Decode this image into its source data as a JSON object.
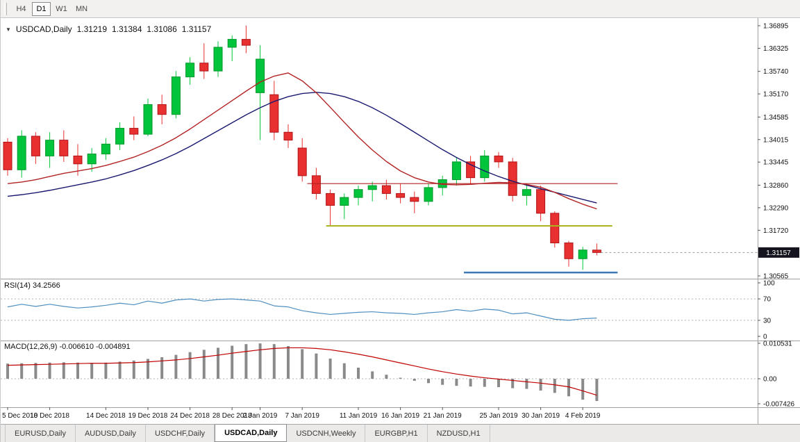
{
  "toolbar": {
    "buttons": [
      {
        "label": "H4",
        "active": false
      },
      {
        "label": "D1",
        "active": true
      },
      {
        "label": "W1",
        "active": false
      },
      {
        "label": "MN",
        "active": false
      }
    ]
  },
  "main_title": {
    "dropdown_icon": "▼",
    "symbol": "USDCAD,Daily",
    "o": "1.31219",
    "h": "1.31384",
    "l": "1.31086",
    "c": "1.31157"
  },
  "chart_data": {
    "type": "candlestick",
    "symbol": "USDCAD",
    "timeframe": "Daily",
    "ylim": [
      1.304,
      1.37
    ],
    "price_axis": {
      "ticks": [
        "1.36895",
        "1.36325",
        "1.35740",
        "1.35170",
        "1.34585",
        "1.34015",
        "1.33445",
        "1.32860",
        "1.32290",
        "1.31720",
        "1.30565"
      ],
      "current": "1.31157",
      "badge_bg": "#14141e",
      "badge_text": "#ffffff"
    },
    "candles": [
      [
        1.3395,
        1.3405,
        1.331,
        1.3325
      ],
      [
        1.3325,
        1.3425,
        1.3305,
        1.341
      ],
      [
        1.341,
        1.342,
        1.334,
        1.336
      ],
      [
        1.336,
        1.342,
        1.333,
        1.34
      ],
      [
        1.34,
        1.3425,
        1.3345,
        1.336
      ],
      [
        1.336,
        1.339,
        1.331,
        1.334
      ],
      [
        1.334,
        1.338,
        1.332,
        1.3365
      ],
      [
        1.3365,
        1.3405,
        1.335,
        1.339
      ],
      [
        1.339,
        1.3445,
        1.3375,
        1.343
      ],
      [
        1.343,
        1.346,
        1.34,
        1.3415
      ],
      [
        1.3415,
        1.3505,
        1.341,
        1.349
      ],
      [
        1.349,
        1.3515,
        1.344,
        1.3465
      ],
      [
        1.3465,
        1.3575,
        1.3455,
        1.356
      ],
      [
        1.356,
        1.361,
        1.354,
        1.3595
      ],
      [
        1.3595,
        1.3645,
        1.3555,
        1.3575
      ],
      [
        1.3575,
        1.365,
        1.356,
        1.3635
      ],
      [
        1.3635,
        1.3665,
        1.36,
        1.3655
      ],
      [
        1.3655,
        1.369,
        1.362,
        1.364
      ],
      [
        1.352,
        1.364,
        1.34,
        1.3605
      ],
      [
        1.3515,
        1.355,
        1.34,
        1.342
      ],
      [
        1.342,
        1.344,
        1.338,
        1.34
      ],
      [
        1.338,
        1.3405,
        1.3295,
        1.331
      ],
      [
        1.331,
        1.333,
        1.325,
        1.3265
      ],
      [
        1.3265,
        1.3275,
        1.3183,
        1.3235
      ],
      [
        1.3235,
        1.3265,
        1.32,
        1.3255
      ],
      [
        1.3255,
        1.3285,
        1.3235,
        1.3275
      ],
      [
        1.3275,
        1.3295,
        1.3245,
        1.3285
      ],
      [
        1.3285,
        1.33,
        1.325,
        1.3265
      ],
      [
        1.3265,
        1.329,
        1.324,
        1.3255
      ],
      [
        1.3255,
        1.327,
        1.3215,
        1.3245
      ],
      [
        1.3245,
        1.329,
        1.3235,
        1.328
      ],
      [
        1.328,
        1.331,
        1.326,
        1.33
      ],
      [
        1.33,
        1.3355,
        1.3285,
        1.3345
      ],
      [
        1.3345,
        1.336,
        1.329,
        1.3305
      ],
      [
        1.3305,
        1.3375,
        1.3295,
        1.336
      ],
      [
        1.336,
        1.337,
        1.333,
        1.3345
      ],
      [
        1.3345,
        1.3355,
        1.3245,
        1.326
      ],
      [
        1.326,
        1.329,
        1.3235,
        1.3275
      ],
      [
        1.3275,
        1.3285,
        1.3195,
        1.3215
      ],
      [
        1.3215,
        1.322,
        1.3128,
        1.314
      ],
      [
        1.314,
        1.3145,
        1.308,
        1.31
      ],
      [
        1.31,
        1.313,
        1.3072,
        1.3122
      ],
      [
        1.31219,
        1.31384,
        1.31086,
        1.31157
      ]
    ],
    "x_labels": [
      {
        "i": 0,
        "t": "5 Dec 2018"
      },
      {
        "i": 3,
        "t": "10 Dec 2018"
      },
      {
        "i": 7,
        "t": "14 Dec 2018"
      },
      {
        "i": 10,
        "t": "19 Dec 2018"
      },
      {
        "i": 13,
        "t": "24 Dec 2018"
      },
      {
        "i": 16,
        "t": "28 Dec 2018"
      },
      {
        "i": 18,
        "t": "2 Jan 2019"
      },
      {
        "i": 21,
        "t": "7 Jan 2019"
      },
      {
        "i": 25,
        "t": "11 Jan 2019"
      },
      {
        "i": 28,
        "t": "16 Jan 2019"
      },
      {
        "i": 31,
        "t": "21 Jan 2019"
      },
      {
        "i": 35,
        "t": "25 Jan 2019"
      },
      {
        "i": 38,
        "t": "30 Jan 2019"
      },
      {
        "i": 41,
        "t": "4 Feb 2019"
      }
    ],
    "overlays": {
      "ma_fast": {
        "color": "#B22222",
        "values": [
          1.329,
          1.3294,
          1.33,
          1.3308,
          1.3316,
          1.3322,
          1.3328,
          1.3336,
          1.3346,
          1.3357,
          1.3371,
          1.3387,
          1.3406,
          1.3428,
          1.3452,
          1.3476,
          1.35,
          1.3524,
          1.3547,
          1.3562,
          1.357,
          1.355,
          1.352,
          1.3483,
          1.3445,
          1.3408,
          1.3375,
          1.3346,
          1.3322,
          1.3305,
          1.3294,
          1.3288,
          1.3287,
          1.3288,
          1.3291,
          1.3293,
          1.3292,
          1.3288,
          1.3281,
          1.3268,
          1.3252,
          1.3238,
          1.3226
        ]
      },
      "ma_slow": {
        "color": "#191970",
        "values": [
          1.3258,
          1.3262,
          1.3267,
          1.3273,
          1.328,
          1.3287,
          1.3294,
          1.3302,
          1.3312,
          1.3323,
          1.3336,
          1.335,
          1.3366,
          1.3384,
          1.3404,
          1.3424,
          1.3444,
          1.3464,
          1.3482,
          1.3498,
          1.351,
          1.3518,
          1.3521,
          1.3518,
          1.351,
          1.3498,
          1.3482,
          1.3463,
          1.3442,
          1.342,
          1.3398,
          1.3376,
          1.3356,
          1.3338,
          1.3322,
          1.3308,
          1.3296,
          1.3286,
          1.3277,
          1.3268,
          1.3259,
          1.325,
          1.3241
        ]
      },
      "hlines": [
        {
          "price": 1.329,
          "color": "#B22222",
          "width": 1.2,
          "x1": 0.405,
          "x2": 0.815
        },
        {
          "price": 1.3183,
          "color": "#A9B41E",
          "width": 2,
          "x1": 0.43,
          "x2": 0.808
        },
        {
          "price": 1.3065,
          "color": "#3C78B4",
          "width": 2.5,
          "x1": 0.612,
          "x2": 0.815
        }
      ]
    },
    "colors": {
      "bull": "#00C43B",
      "bear": "#E83030",
      "bull_border": "#00962a",
      "bear_border": "#b01418",
      "axis_text": "#101010",
      "separator": "#a0a0a0",
      "dashed_level": "#b4b4b4",
      "tick": "#555555",
      "current_line": "#9a9a9a"
    },
    "rsi": {
      "label": "RSI(14) 34.2566",
      "color": "#4f8fc0",
      "axis_ticks": [
        "100",
        "70",
        "30",
        "0"
      ],
      "dashed": [
        70,
        30
      ],
      "values": [
        55,
        60,
        56,
        60,
        56,
        53,
        55,
        58,
        62,
        59,
        66,
        62,
        68,
        70,
        66,
        69,
        70,
        68,
        66,
        57,
        55,
        48,
        44,
        41,
        43,
        45,
        46,
        44,
        43,
        41,
        44,
        46,
        50,
        47,
        51,
        49,
        42,
        44,
        38,
        32,
        30,
        33,
        34.26
      ]
    },
    "macd": {
      "label": "MACD(12,26,9) -0.006610 -0.004891",
      "hist_color": "#8a8a8a",
      "signal_color": "#C00000",
      "axis_ticks": [
        "0.010531",
        "0.00",
        "-0.007426"
      ],
      "histogram": [
        0.0045,
        0.0046,
        0.0047,
        0.0048,
        0.0049,
        0.0048,
        0.0047,
        0.0048,
        0.0051,
        0.0054,
        0.0059,
        0.0064,
        0.0071,
        0.0079,
        0.0086,
        0.0092,
        0.0098,
        0.0103,
        0.0105,
        0.0103,
        0.0097,
        0.0088,
        0.0075,
        0.006,
        0.0046,
        0.0033,
        0.0022,
        0.0012,
        0.0003,
        -0.0006,
        -0.0013,
        -0.0018,
        -0.0021,
        -0.0023,
        -0.0024,
        -0.0025,
        -0.0028,
        -0.003,
        -0.0035,
        -0.0042,
        -0.0052,
        -0.0062,
        -0.00661
      ],
      "signal": [
        0.004,
        0.0041,
        0.0042,
        0.0043,
        0.0044,
        0.0045,
        0.0046,
        0.0046,
        0.0047,
        0.0048,
        0.005,
        0.0053,
        0.0056,
        0.006,
        0.0065,
        0.007,
        0.0076,
        0.0081,
        0.0086,
        0.009,
        0.0092,
        0.0092,
        0.009,
        0.0086,
        0.008,
        0.0073,
        0.0065,
        0.0056,
        0.0047,
        0.0038,
        0.0029,
        0.0021,
        0.0014,
        0.0008,
        0.0003,
        -0.0001,
        -0.0005,
        -0.0009,
        -0.0013,
        -0.0018,
        -0.0024,
        -0.0036,
        -0.00489
      ]
    }
  },
  "tabs": [
    {
      "label": "EURUSD,Daily",
      "active": false
    },
    {
      "label": "AUDUSD,Daily",
      "active": false
    },
    {
      "label": "USDCHF,Daily",
      "active": false
    },
    {
      "label": "USDCAD,Daily",
      "active": true
    },
    {
      "label": "USDCNH,Weekly",
      "active": false
    },
    {
      "label": "EURGBP,H1",
      "active": false
    },
    {
      "label": "NZDUSD,H1",
      "active": false
    }
  ]
}
